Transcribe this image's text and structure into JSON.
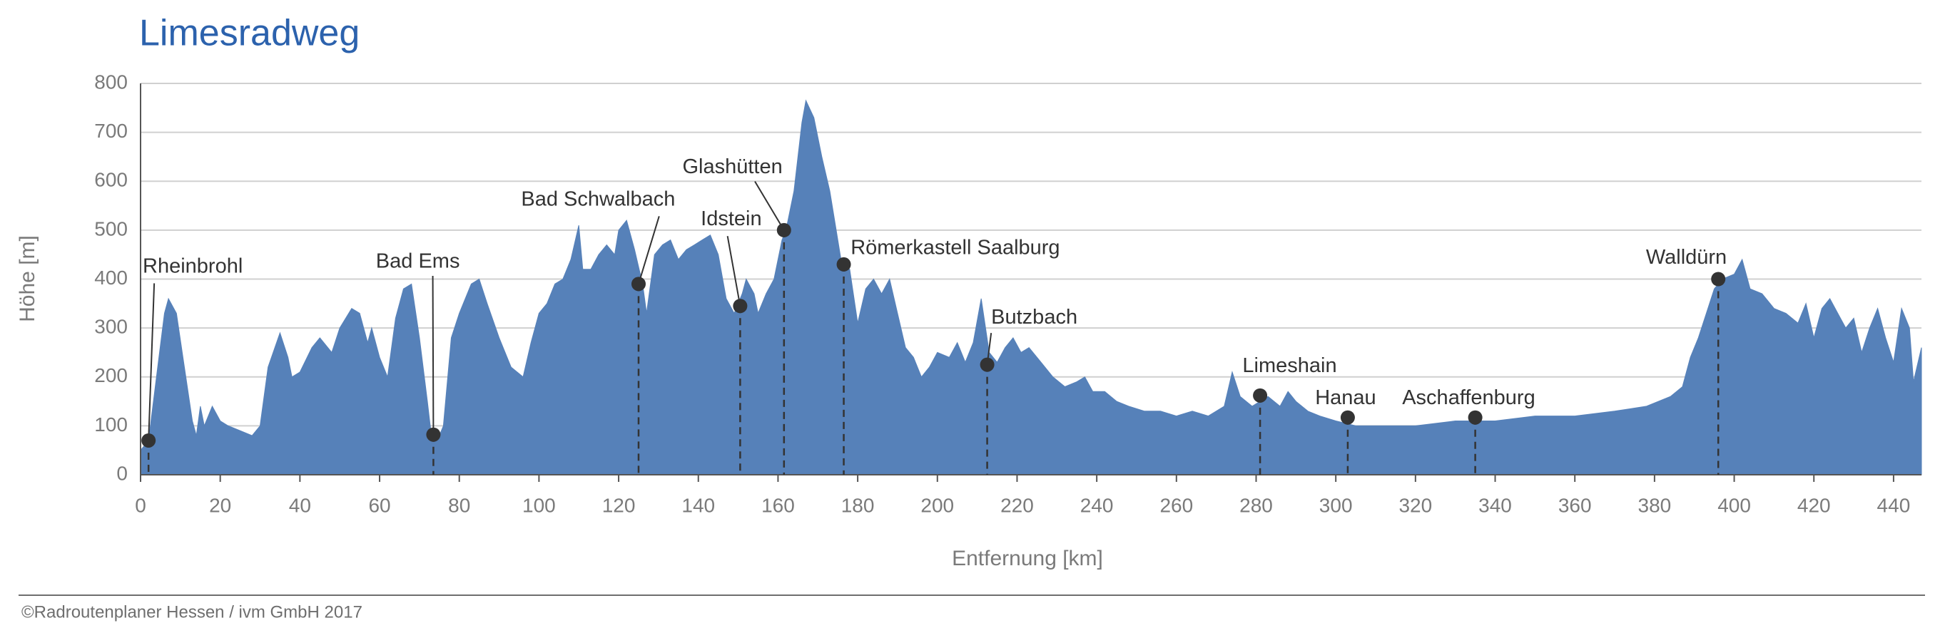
{
  "chart_data": {
    "type": "area",
    "title": "Limesradweg",
    "x_label": "Entfernung [km]",
    "y_label": "Höhe [m]",
    "source": "©Radroutenplaner Hessen / ivm GmbH 2017",
    "color": "#5681b9",
    "grid": true,
    "xlim": [
      0,
      447
    ],
    "ylim": [
      0,
      800
    ],
    "xticks": [
      0,
      20,
      40,
      60,
      80,
      100,
      120,
      140,
      160,
      180,
      200,
      220,
      240,
      260,
      280,
      300,
      320,
      340,
      360,
      380,
      400,
      420,
      440
    ],
    "yticks": [
      0,
      100,
      200,
      300,
      400,
      500,
      600,
      700,
      800
    ],
    "x": [
      0,
      2,
      4,
      6,
      7,
      9,
      11,
      13,
      14,
      15,
      16,
      18,
      20,
      22,
      25,
      28,
      30,
      32,
      35,
      37,
      38,
      40,
      43,
      45,
      48,
      50,
      53,
      55,
      57,
      58,
      60,
      62,
      64,
      66,
      68,
      70,
      72,
      73,
      75,
      76,
      78,
      80,
      83,
      85,
      87,
      90,
      93,
      96,
      98,
      100,
      102,
      104,
      106,
      108,
      110,
      111,
      113,
      115,
      117,
      119,
      120,
      122,
      124,
      126,
      127,
      129,
      131,
      133,
      135,
      137,
      139,
      141,
      143,
      145,
      147,
      149,
      151,
      152,
      154,
      155,
      157,
      159,
      161,
      162,
      164,
      166,
      167,
      169,
      171,
      173,
      175,
      176,
      178,
      180,
      182,
      184,
      186,
      188,
      190,
      192,
      194,
      196,
      198,
      200,
      203,
      205,
      207,
      209,
      211,
      213,
      215,
      217,
      219,
      221,
      223,
      226,
      229,
      232,
      235,
      237,
      239,
      242,
      245,
      248,
      252,
      256,
      260,
      264,
      268,
      272,
      274,
      276,
      279,
      281,
      283,
      286,
      288,
      290,
      293,
      296,
      300,
      305,
      310,
      320,
      330,
      340,
      350,
      360,
      370,
      378,
      384,
      387,
      389,
      391,
      393,
      395,
      397,
      400,
      402,
      404,
      407,
      410,
      413,
      416,
      418,
      420,
      422,
      424,
      426,
      428,
      430,
      432,
      434,
      436,
      438,
      440,
      442,
      444,
      445,
      447
    ],
    "values": [
      50,
      70,
      200,
      330,
      360,
      330,
      220,
      110,
      80,
      140,
      100,
      140,
      110,
      100,
      90,
      80,
      100,
      220,
      290,
      240,
      200,
      210,
      260,
      280,
      250,
      300,
      340,
      330,
      270,
      300,
      240,
      200,
      320,
      380,
      390,
      280,
      150,
      80,
      80,
      100,
      280,
      330,
      390,
      400,
      350,
      280,
      220,
      200,
      270,
      330,
      350,
      390,
      400,
      440,
      510,
      420,
      420,
      450,
      470,
      450,
      500,
      520,
      460,
      390,
      330,
      450,
      470,
      480,
      440,
      460,
      470,
      480,
      490,
      450,
      360,
      330,
      370,
      400,
      370,
      330,
      370,
      400,
      480,
      500,
      580,
      720,
      765,
      730,
      650,
      580,
      480,
      430,
      420,
      310,
      380,
      400,
      370,
      400,
      330,
      260,
      240,
      200,
      220,
      250,
      240,
      270,
      230,
      270,
      360,
      250,
      230,
      260,
      280,
      250,
      260,
      230,
      200,
      180,
      190,
      200,
      170,
      170,
      150,
      140,
      130,
      130,
      120,
      130,
      120,
      140,
      210,
      160,
      140,
      150,
      160,
      140,
      170,
      150,
      130,
      120,
      110,
      100,
      100,
      100,
      110,
      110,
      120,
      120,
      130,
      140,
      160,
      180,
      240,
      280,
      330,
      380,
      400,
      410,
      440,
      380,
      370,
      340,
      330,
      310,
      350,
      280,
      340,
      360,
      330,
      300,
      320,
      250,
      300,
      340,
      280,
      230,
      340,
      300,
      190,
      260
    ],
    "annotations": [
      {
        "label": "Rheinbrohl",
        "x": 2,
        "y": 70
      },
      {
        "label": "Bad Ems",
        "x": 73.5,
        "y": 82
      },
      {
        "label": "Bad Schwalbach",
        "x": 125,
        "y": 390
      },
      {
        "label": "Idstein",
        "x": 150.5,
        "y": 345
      },
      {
        "label": "Glashütten",
        "x": 161.5,
        "y": 500
      },
      {
        "label": "Römerkastell Saalburg",
        "x": 176.5,
        "y": 430
      },
      {
        "label": "Butzbach",
        "x": 212.5,
        "y": 225
      },
      {
        "label": "Limeshain",
        "x": 281,
        "y": 162
      },
      {
        "label": "Hanau",
        "x": 303,
        "y": 117
      },
      {
        "label": "Aschaffenburg",
        "x": 335,
        "y": 117
      },
      {
        "label": "Walldürn",
        "x": 396,
        "y": 400
      }
    ]
  }
}
